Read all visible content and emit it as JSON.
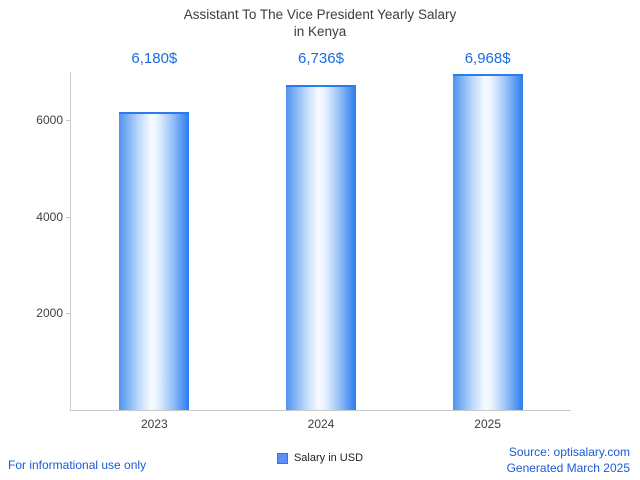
{
  "title_lines": [
    "Assistant To The Vice President Yearly Salary",
    "in Kenya"
  ],
  "chart_data": {
    "type": "bar",
    "title": "Assistant To The Vice President Yearly Salary in Kenya",
    "categories": [
      "2023",
      "2024",
      "2025"
    ],
    "values": [
      6180,
      6736,
      6968
    ],
    "value_labels": [
      "6,180$",
      "6,736$",
      "6,968$"
    ],
    "series": [
      {
        "name": "Salary in USD",
        "values": [
          6180,
          6736,
          6968
        ]
      }
    ],
    "xlabel": "",
    "ylabel": "",
    "ylim": [
      0,
      7000
    ],
    "yticks": [
      2000,
      4000,
      6000
    ],
    "grid": false,
    "legend_position": "bottom-center",
    "bar_gradient": [
      "#4f93f0",
      "#f7fbff",
      "#2b7bee"
    ],
    "value_label_color": "#1a6bdf"
  },
  "legend": {
    "label": "Salary in USD",
    "swatch_color": "#5b8ff9"
  },
  "footer": {
    "disclaimer": "For informational use only",
    "source": "Source: optisalary.com",
    "generated": "Generated March 2025"
  }
}
